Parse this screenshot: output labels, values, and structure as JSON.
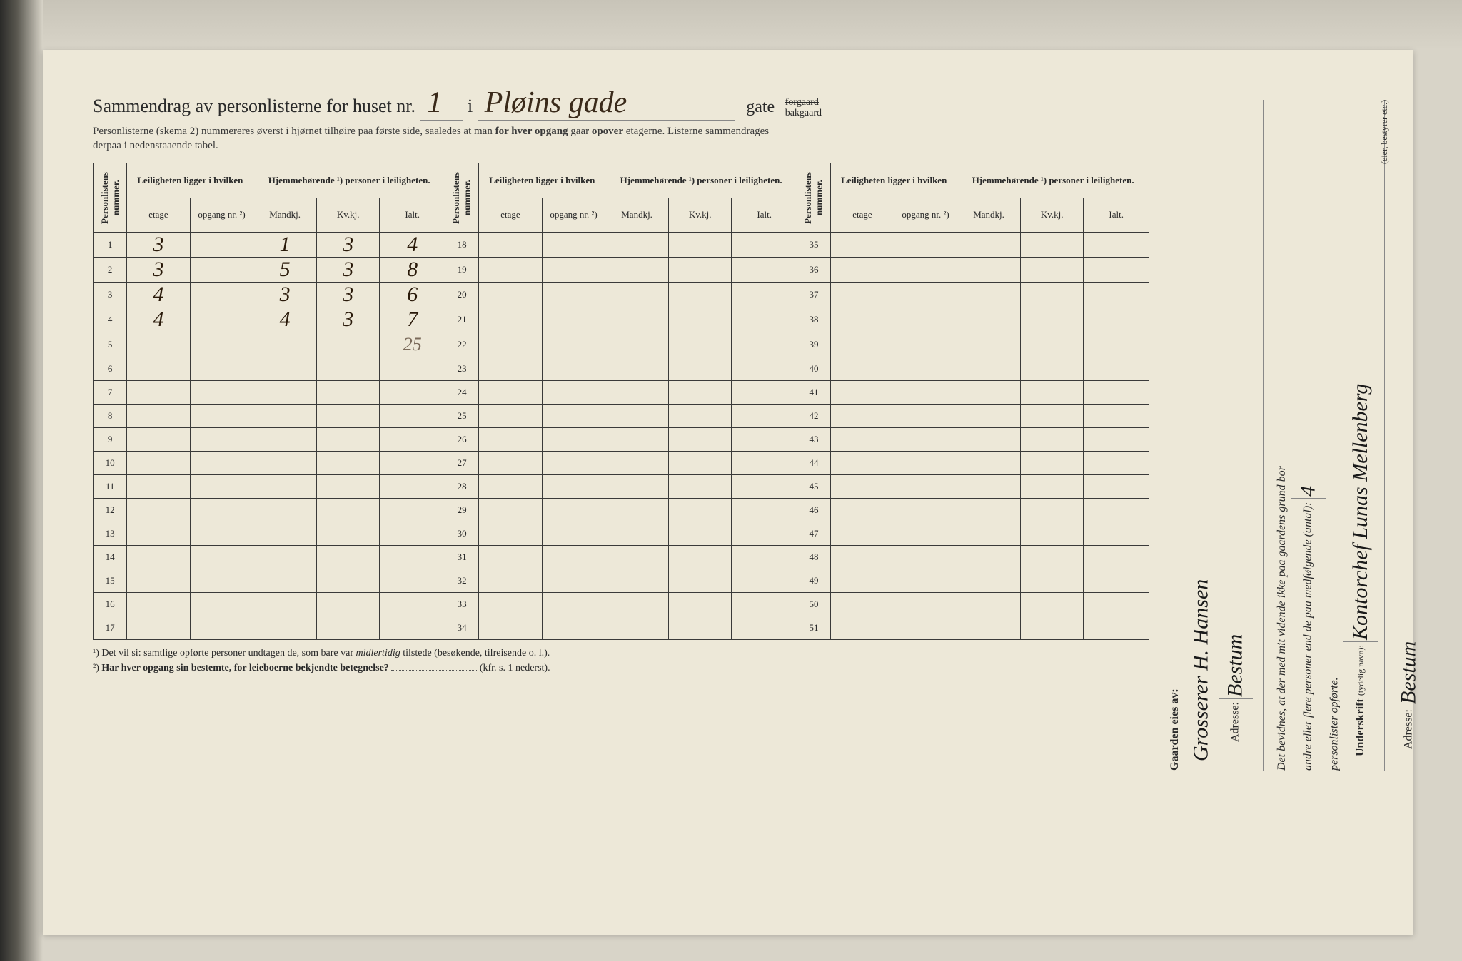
{
  "header": {
    "title_prefix": "Sammendrag av personlisterne for huset nr.",
    "house_nr": "1",
    "i_label": "i",
    "street_name": "Pløins gade",
    "gate_label": "gate",
    "forgaard": "forgaard",
    "bakgaard": "bakgaard",
    "subtitle_1": "Personlisterne (skema 2) nummereres øverst i hjørnet tilhøire paa første side, saaledes at man",
    "subtitle_bold_1": "for hver opgang",
    "subtitle_2": "gaar",
    "subtitle_bold_2": "opover",
    "subtitle_3": "etagerne. Listerne sammendrages",
    "subtitle_4": "derpaa i nedenstaaende tabel."
  },
  "table": {
    "col_personlistens": "Personlistens nummer.",
    "col_leilighet": "Leiligheten ligger i hvilken",
    "col_hjemme": "Hjemmehørende ¹) personer i leiligheten.",
    "sub_etage": "etage",
    "sub_opgang": "opgang nr. ²)",
    "sub_mandkj": "Mandkj.",
    "sub_kvkj": "Kv.kj.",
    "sub_ialt": "Ialt.",
    "rows_a": [
      {
        "n": "1",
        "etage": "3",
        "opgang": "",
        "m": "1",
        "k": "3",
        "i": "4"
      },
      {
        "n": "2",
        "etage": "3",
        "opgang": "",
        "m": "5",
        "k": "3",
        "i": "8"
      },
      {
        "n": "3",
        "etage": "4",
        "opgang": "",
        "m": "3",
        "k": "3",
        "i": "6"
      },
      {
        "n": "4",
        "etage": "4",
        "opgang": "",
        "m": "4",
        "k": "3",
        "i": "7"
      },
      {
        "n": "5",
        "etage": "",
        "opgang": "",
        "m": "",
        "k": "",
        "i": "25",
        "sum": true
      },
      {
        "n": "6"
      },
      {
        "n": "7"
      },
      {
        "n": "8"
      },
      {
        "n": "9"
      },
      {
        "n": "10"
      },
      {
        "n": "11"
      },
      {
        "n": "12"
      },
      {
        "n": "13"
      },
      {
        "n": "14"
      },
      {
        "n": "15"
      },
      {
        "n": "16"
      },
      {
        "n": "17"
      }
    ],
    "rows_b_start": 18,
    "rows_b_end": 34,
    "rows_c_start": 35,
    "rows_c_end": 51
  },
  "footnotes": {
    "f1_sup": "¹)",
    "f1": "Det vil si: samtlige opførte personer undtagen de, som bare var",
    "f1_em": "midlertidig",
    "f1_after": "tilstede (besøkende, tilreisende o. l.).",
    "f2_sup": "²)",
    "f2_bold": "Har hver opgang sin bestemte, for leieboerne bekjendte betegnelse?",
    "f2_after": "(kfr. s. 1 nederst)."
  },
  "right": {
    "owner_label": "Gaarden eies av:",
    "owner_name": "Grosserer H. Hansen",
    "owner_addr_label": "Adresse:",
    "owner_addr": "Bestum",
    "attest_text_1": "Det bevidnes, at der med mit vidende ikke paa gaardens grund bor",
    "attest_text_2": "andre eller flere personer end de paa medfølgende (antal):",
    "attest_count": "4",
    "attest_text_3": "personlister opførte.",
    "sign_label": "Underskrift",
    "sign_note": "(tydelig navn):",
    "sign_name": "Kontorchef Lunas Mellenberg",
    "sign_role": "(eier, bestyrer etc.)",
    "sign_addr_label": "Adresse:",
    "sign_addr": "Bestum"
  },
  "colors": {
    "paper": "#ede8d8",
    "ink": "#2a2a2a",
    "handwriting": "#2a1a0a",
    "pencil": "#7a6a5a",
    "border": "#3a3a3a"
  }
}
